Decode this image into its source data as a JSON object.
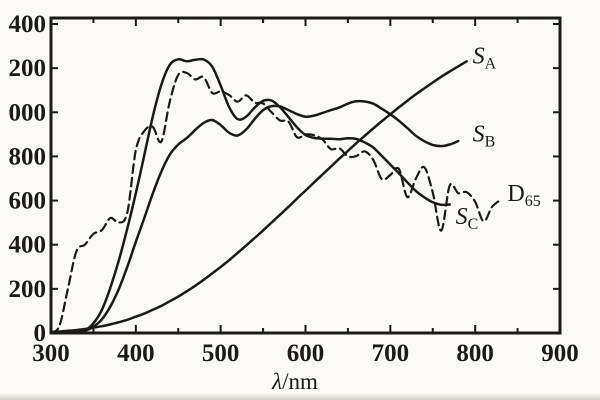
{
  "figure": {
    "background": "#fbfaf7",
    "ink": "#1b1a17"
  },
  "chart_data": {
    "type": "line",
    "title": "",
    "xlabel_italic": "λ",
    "xlabel_rest": "/nm",
    "ylabel": "",
    "grid": false,
    "legend_position": "inline-curve-labels",
    "x_axis": {
      "min": 300,
      "max": 900,
      "minor_tick_step": 50,
      "label_step": 100,
      "tick_labels": [
        {
          "at": 300,
          "text": "300"
        },
        {
          "at": 400,
          "text": "400"
        },
        {
          "at": 500,
          "text": "500"
        },
        {
          "at": 600,
          "text": "600"
        },
        {
          "at": 700,
          "text": "700"
        },
        {
          "at": 800,
          "text": "800"
        },
        {
          "at": 900,
          "text": "900"
        }
      ]
    },
    "y_axis": {
      "min": 0,
      "max": 1400,
      "tick_step": 200,
      "note": "leading digit 1 of 1000/1200/1400 is cropped in the scan",
      "tick_labels": [
        {
          "at": 0,
          "text": "0"
        },
        {
          "at": 200,
          "text": "200"
        },
        {
          "at": 400,
          "text": "400"
        },
        {
          "at": 600,
          "text": "600"
        },
        {
          "at": 800,
          "text": "800"
        },
        {
          "at": 1000,
          "text": "000"
        },
        {
          "at": 1200,
          "text": "200"
        },
        {
          "at": 1400,
          "text": "400"
        }
      ]
    },
    "series": [
      {
        "id": "S_A",
        "label_base": "S",
        "label_sub": "A",
        "label_italic": true,
        "line": "solid",
        "label_anchor": {
          "lambda": 797,
          "value": 1222
        },
        "points": [
          [
            300,
            5
          ],
          [
            310,
            7
          ],
          [
            320,
            10
          ],
          [
            330,
            13
          ],
          [
            340,
            18
          ],
          [
            350,
            24
          ],
          [
            360,
            31
          ],
          [
            370,
            39
          ],
          [
            380,
            49
          ],
          [
            390,
            60
          ],
          [
            400,
            74
          ],
          [
            410,
            88
          ],
          [
            420,
            105
          ],
          [
            430,
            123
          ],
          [
            440,
            144
          ],
          [
            450,
            165
          ],
          [
            460,
            189
          ],
          [
            470,
            214
          ],
          [
            480,
            241
          ],
          [
            490,
            270
          ],
          [
            500,
            299
          ],
          [
            510,
            330
          ],
          [
            520,
            363
          ],
          [
            530,
            396
          ],
          [
            540,
            430
          ],
          [
            550,
            465
          ],
          [
            560,
            500
          ],
          [
            570,
            536
          ],
          [
            580,
            572
          ],
          [
            590,
            609
          ],
          [
            600,
            645
          ],
          [
            610,
            682
          ],
          [
            620,
            718
          ],
          [
            630,
            754
          ],
          [
            640,
            790
          ],
          [
            650,
            825
          ],
          [
            660,
            860
          ],
          [
            670,
            894
          ],
          [
            680,
            927
          ],
          [
            690,
            960
          ],
          [
            700,
            991
          ],
          [
            710,
            1022
          ],
          [
            720,
            1052
          ],
          [
            730,
            1081
          ],
          [
            740,
            1108
          ],
          [
            750,
            1135
          ],
          [
            760,
            1161
          ],
          [
            770,
            1185
          ],
          [
            780,
            1208
          ],
          [
            790,
            1231
          ]
        ]
      },
      {
        "id": "S_B",
        "label_base": "S",
        "label_sub": "B",
        "label_italic": true,
        "line": "solid",
        "label_anchor": {
          "lambda": 797,
          "value": 868
        },
        "points": [
          [
            320,
            0
          ],
          [
            330,
            3
          ],
          [
            340,
            10
          ],
          [
            350,
            28
          ],
          [
            360,
            62
          ],
          [
            370,
            120
          ],
          [
            380,
            200
          ],
          [
            390,
            300
          ],
          [
            400,
            413
          ],
          [
            410,
            521
          ],
          [
            420,
            632
          ],
          [
            430,
            731
          ],
          [
            440,
            808
          ],
          [
            450,
            854
          ],
          [
            460,
            883
          ],
          [
            470,
            920
          ],
          [
            480,
            952
          ],
          [
            490,
            965
          ],
          [
            500,
            942
          ],
          [
            510,
            907
          ],
          [
            520,
            895
          ],
          [
            530,
            922
          ],
          [
            540,
            969
          ],
          [
            550,
            1010
          ],
          [
            560,
            1028
          ],
          [
            570,
            1026
          ],
          [
            580,
            1010
          ],
          [
            590,
            992
          ],
          [
            600,
            980
          ],
          [
            610,
            985
          ],
          [
            620,
            997
          ],
          [
            630,
            1010
          ],
          [
            640,
            1022
          ],
          [
            650,
            1039
          ],
          [
            660,
            1050
          ],
          [
            670,
            1049
          ],
          [
            680,
            1039
          ],
          [
            690,
            1016
          ],
          [
            700,
            991
          ],
          [
            710,
            962
          ],
          [
            720,
            929
          ],
          [
            730,
            894
          ],
          [
            740,
            869
          ],
          [
            750,
            852
          ],
          [
            760,
            847
          ],
          [
            770,
            854
          ],
          [
            780,
            870
          ]
        ]
      },
      {
        "id": "S_C",
        "label_base": "S",
        "label_sub": "C",
        "label_italic": true,
        "line": "solid",
        "label_anchor": {
          "lambda": 777,
          "value": 494
        },
        "points": [
          [
            320,
            0
          ],
          [
            330,
            2
          ],
          [
            340,
            12
          ],
          [
            350,
            44
          ],
          [
            360,
            105
          ],
          [
            370,
            206
          ],
          [
            380,
            330
          ],
          [
            390,
            474
          ],
          [
            400,
            633
          ],
          [
            410,
            806
          ],
          [
            420,
            981
          ],
          [
            430,
            1124
          ],
          [
            440,
            1215
          ],
          [
            450,
            1240
          ],
          [
            460,
            1231
          ],
          [
            470,
            1238
          ],
          [
            480,
            1239
          ],
          [
            490,
            1207
          ],
          [
            500,
            1121
          ],
          [
            510,
            1023
          ],
          [
            520,
            969
          ],
          [
            530,
            980
          ],
          [
            540,
            1021
          ],
          [
            550,
            1052
          ],
          [
            560,
            1053
          ],
          [
            570,
            1023
          ],
          [
            580,
            978
          ],
          [
            590,
            932
          ],
          [
            600,
            897
          ],
          [
            610,
            884
          ],
          [
            620,
            881
          ],
          [
            630,
            880
          ],
          [
            640,
            878
          ],
          [
            650,
            882
          ],
          [
            660,
            879
          ],
          [
            670,
            863
          ],
          [
            680,
            840
          ],
          [
            690,
            802
          ],
          [
            700,
            763
          ],
          [
            710,
            724
          ],
          [
            720,
            683
          ],
          [
            730,
            644
          ],
          [
            740,
            615
          ],
          [
            750,
            592
          ],
          [
            760,
            581
          ],
          [
            770,
            582
          ]
        ]
      },
      {
        "id": "D65",
        "label_base": "D",
        "label_sub": "65",
        "label_italic": false,
        "line": "dashed",
        "label_anchor": {
          "lambda": 838,
          "value": 597
        },
        "points": [
          [
            300,
            0
          ],
          [
            310,
            33
          ],
          [
            320,
            202
          ],
          [
            330,
            371
          ],
          [
            340,
            400
          ],
          [
            350,
            449
          ],
          [
            360,
            466
          ],
          [
            370,
            521
          ],
          [
            380,
            500
          ],
          [
            390,
            546
          ],
          [
            400,
            828
          ],
          [
            410,
            915
          ],
          [
            420,
            934
          ],
          [
            430,
            867
          ],
          [
            440,
            1049
          ],
          [
            450,
            1170
          ],
          [
            460,
            1178
          ],
          [
            470,
            1149
          ],
          [
            480,
            1159
          ],
          [
            490,
            1088
          ],
          [
            500,
            1094
          ],
          [
            510,
            1078
          ],
          [
            520,
            1048
          ],
          [
            530,
            1077
          ],
          [
            540,
            1044
          ],
          [
            550,
            1040
          ],
          [
            560,
            1000
          ],
          [
            570,
            963
          ],
          [
            580,
            958
          ],
          [
            590,
            887
          ],
          [
            600,
            900
          ],
          [
            610,
            896
          ],
          [
            620,
            877
          ],
          [
            630,
            833
          ],
          [
            640,
            837
          ],
          [
            650,
            800
          ],
          [
            660,
            802
          ],
          [
            670,
            823
          ],
          [
            680,
            783
          ],
          [
            690,
            697
          ],
          [
            700,
            716
          ],
          [
            710,
            744
          ],
          [
            720,
            616
          ],
          [
            730,
            699
          ],
          [
            740,
            751
          ],
          [
            750,
            636
          ],
          [
            760,
            464
          ],
          [
            770,
            668
          ],
          [
            780,
            634
          ],
          [
            790,
            638
          ],
          [
            800,
            594
          ],
          [
            810,
            506
          ],
          [
            820,
            572
          ],
          [
            830,
            603
          ]
        ]
      }
    ]
  }
}
